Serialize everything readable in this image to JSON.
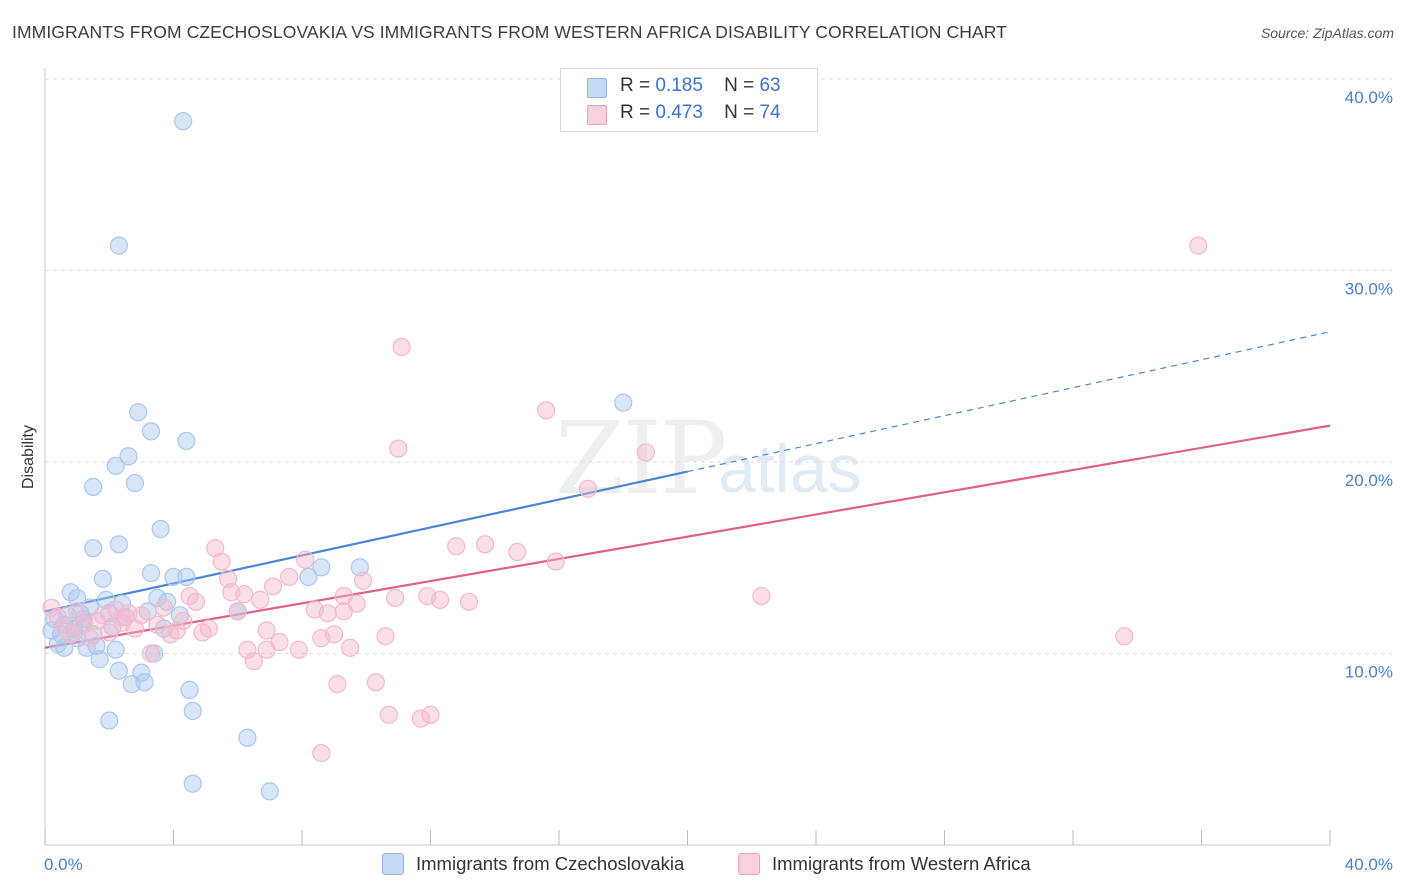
{
  "title": "IMMIGRANTS FROM CZECHOSLOVAKIA VS IMMIGRANTS FROM WESTERN AFRICA DISABILITY CORRELATION CHART",
  "source": "Source: ZipAtlas.com",
  "watermark": {
    "zip": "ZIP",
    "atlas": "atlas"
  },
  "legend": {
    "rows": [
      {
        "r_label": "R =",
        "r_value": "0.185",
        "n_label": "N =",
        "n_value": "63",
        "color": "#a8c8f0"
      },
      {
        "r_label": "R =",
        "r_value": "0.473",
        "n_label": "N =",
        "n_value": "74",
        "color": "#f5b8cb"
      }
    ]
  },
  "bottom_legend": [
    {
      "label": "Immigrants from Czechoslovakia",
      "color": "#a8c8f0"
    },
    {
      "label": "Immigrants from Western Africa",
      "color": "#f5b8cb"
    }
  ],
  "chart_data": {
    "type": "scatter",
    "title": "IMMIGRANTS FROM CZECHOSLOVAKIA VS IMMIGRANTS FROM WESTERN AFRICA DISABILITY CORRELATION CHART",
    "xlabel": "",
    "ylabel": "Disability",
    "xlim": [
      0,
      40
    ],
    "ylim": [
      0,
      40
    ],
    "x_tick_labels": [
      "0.0%",
      "40.0%"
    ],
    "y_tick_labels": [
      "10.0%",
      "20.0%",
      "30.0%",
      "40.0%"
    ],
    "y_ticks": [
      10,
      20,
      30,
      40
    ],
    "grid": true,
    "legend_position": "top-center",
    "series": [
      {
        "name": "Immigrants from Czechoslovakia",
        "color": "#4a86d8",
        "fill": "#a8c8f0",
        "trend": {
          "x0": 0,
          "y0": 12.2,
          "x1": 20,
          "y1": 19.5,
          "dashed_to_x": 40,
          "dashed_to_y": 26.8
        },
        "points": [
          [
            0.2,
            11.2
          ],
          [
            0.3,
            11.8
          ],
          [
            0.4,
            10.5
          ],
          [
            0.5,
            11.0
          ],
          [
            0.6,
            11.5
          ],
          [
            0.7,
            12.0
          ],
          [
            0.8,
            13.2
          ],
          [
            0.9,
            11.3
          ],
          [
            1.0,
            10.8
          ],
          [
            1.1,
            12.1
          ],
          [
            1.2,
            11.6
          ],
          [
            1.3,
            10.3
          ],
          [
            1.4,
            12.4
          ],
          [
            1.5,
            11.0
          ],
          [
            1.6,
            10.4
          ],
          [
            1.7,
            9.7
          ],
          [
            1.8,
            13.9
          ],
          [
            1.9,
            12.8
          ],
          [
            2.0,
            12.1
          ],
          [
            2.1,
            11.4
          ],
          [
            2.2,
            10.2
          ],
          [
            2.3,
            9.1
          ],
          [
            2.4,
            12.6
          ],
          [
            2.5,
            11.9
          ],
          [
            2.6,
            20.3
          ],
          [
            2.7,
            8.4
          ],
          [
            2.8,
            18.9
          ],
          [
            2.9,
            22.6
          ],
          [
            3.0,
            9.0
          ],
          [
            3.1,
            8.5
          ],
          [
            3.2,
            12.2
          ],
          [
            3.3,
            21.6
          ],
          [
            3.4,
            10.0
          ],
          [
            3.5,
            12.9
          ],
          [
            3.6,
            16.5
          ],
          [
            3.7,
            11.3
          ],
          [
            3.8,
            12.7
          ],
          [
            4.0,
            14.0
          ],
          [
            4.2,
            12.0
          ],
          [
            4.4,
            21.1
          ],
          [
            4.5,
            8.1
          ],
          [
            4.6,
            3.2
          ],
          [
            4.4,
            14.0
          ],
          [
            4.3,
            37.8
          ],
          [
            4.6,
            7.0
          ],
          [
            2.3,
            31.3
          ],
          [
            2.0,
            6.5
          ],
          [
            1.5,
            15.5
          ],
          [
            2.3,
            15.7
          ],
          [
            2.2,
            19.8
          ],
          [
            1.5,
            18.7
          ],
          [
            6.0,
            12.2
          ],
          [
            6.3,
            5.6
          ],
          [
            7.0,
            2.8
          ],
          [
            8.2,
            14.0
          ],
          [
            8.6,
            14.5
          ],
          [
            9.8,
            14.5
          ],
          [
            18.0,
            23.1
          ],
          [
            0.9,
            11.1
          ],
          [
            1.2,
            11.8
          ],
          [
            0.6,
            10.3
          ],
          [
            1.0,
            12.9
          ],
          [
            3.3,
            14.2
          ]
        ]
      },
      {
        "name": "Immigrants from Western Africa",
        "color": "#e0608a",
        "fill": "#f5b8cb",
        "trend": {
          "x0": 0,
          "y0": 10.3,
          "x1": 40,
          "y1": 21.9
        },
        "points": [
          [
            0.2,
            12.4
          ],
          [
            0.4,
            11.9
          ],
          [
            0.6,
            11.3
          ],
          [
            0.8,
            11.0
          ],
          [
            1.0,
            12.2
          ],
          [
            1.2,
            11.5
          ],
          [
            1.4,
            10.8
          ],
          [
            1.6,
            11.7
          ],
          [
            1.8,
            12.0
          ],
          [
            2.0,
            11.1
          ],
          [
            2.2,
            12.3
          ],
          [
            2.4,
            11.6
          ],
          [
            2.6,
            12.1
          ],
          [
            2.8,
            11.3
          ],
          [
            3.0,
            12.0
          ],
          [
            3.3,
            10.0
          ],
          [
            3.5,
            11.5
          ],
          [
            3.7,
            12.4
          ],
          [
            3.9,
            11.0
          ],
          [
            4.1,
            11.2
          ],
          [
            4.3,
            11.7
          ],
          [
            4.5,
            13.0
          ],
          [
            4.7,
            12.7
          ],
          [
            4.9,
            11.1
          ],
          [
            5.1,
            11.3
          ],
          [
            5.3,
            15.5
          ],
          [
            5.5,
            14.8
          ],
          [
            5.7,
            13.9
          ],
          [
            6.0,
            12.2
          ],
          [
            6.2,
            13.1
          ],
          [
            6.3,
            10.2
          ],
          [
            6.5,
            9.6
          ],
          [
            6.7,
            12.8
          ],
          [
            6.9,
            11.2
          ],
          [
            7.1,
            13.5
          ],
          [
            7.3,
            10.6
          ],
          [
            7.6,
            14.0
          ],
          [
            7.9,
            10.2
          ],
          [
            8.1,
            14.9
          ],
          [
            8.4,
            12.3
          ],
          [
            8.6,
            10.8
          ],
          [
            8.8,
            12.1
          ],
          [
            9.0,
            11.0
          ],
          [
            9.1,
            8.4
          ],
          [
            9.3,
            12.2
          ],
          [
            9.5,
            10.3
          ],
          [
            9.7,
            12.6
          ],
          [
            9.9,
            13.8
          ],
          [
            10.3,
            8.5
          ],
          [
            10.6,
            10.9
          ],
          [
            10.9,
            12.9
          ],
          [
            11.1,
            26.0
          ],
          [
            11.0,
            20.7
          ],
          [
            11.9,
            13.0
          ],
          [
            12.3,
            12.8
          ],
          [
            13.2,
            12.7
          ],
          [
            12.8,
            15.6
          ],
          [
            13.7,
            15.7
          ],
          [
            14.7,
            15.3
          ],
          [
            15.6,
            22.7
          ],
          [
            15.9,
            14.8
          ],
          [
            16.9,
            18.6
          ],
          [
            18.7,
            20.5
          ],
          [
            22.3,
            13.0
          ],
          [
            33.6,
            10.9
          ],
          [
            35.9,
            31.3
          ],
          [
            8.6,
            4.8
          ],
          [
            10.7,
            6.8
          ],
          [
            11.7,
            6.6
          ],
          [
            12.0,
            6.8
          ],
          [
            6.9,
            10.2
          ],
          [
            9.3,
            13.0
          ],
          [
            5.8,
            13.2
          ],
          [
            2.4,
            11.9
          ]
        ]
      }
    ]
  }
}
